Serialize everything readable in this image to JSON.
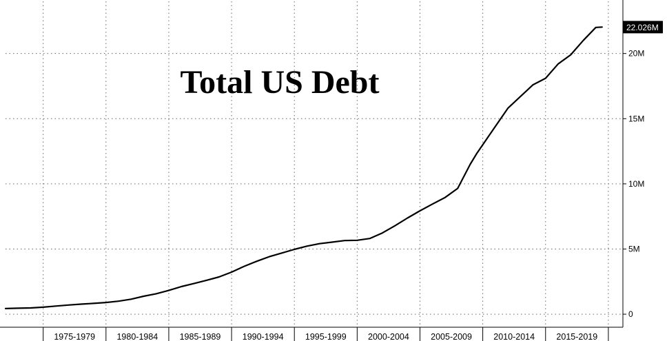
{
  "chart_data": {
    "type": "line",
    "title": "Total US Debt",
    "ylim": [
      -1000000,
      24000000
    ],
    "y_ticks": [
      {
        "value": 0,
        "label": "0"
      },
      {
        "value": 5000000,
        "label": "5M"
      },
      {
        "value": 10000000,
        "label": "10M"
      },
      {
        "value": 15000000,
        "label": "15M"
      },
      {
        "value": 20000000,
        "label": "20M"
      }
    ],
    "x_range": [
      1972.0,
      2020.5
    ],
    "x_groups": [
      {
        "label": "1975-1979",
        "start": 1975,
        "end": 1980
      },
      {
        "label": "1980-1984",
        "start": 1980,
        "end": 1985
      },
      {
        "label": "1985-1989",
        "start": 1985,
        "end": 1990
      },
      {
        "label": "1990-1994",
        "start": 1990,
        "end": 1995
      },
      {
        "label": "1995-1999",
        "start": 1995,
        "end": 2000
      },
      {
        "label": "2000-2004",
        "start": 2000,
        "end": 2005
      },
      {
        "label": "2005-2009",
        "start": 2005,
        "end": 2010
      },
      {
        "label": "2010-2014",
        "start": 2010,
        "end": 2015
      },
      {
        "label": "2015-2019",
        "start": 2015,
        "end": 2020
      }
    ],
    "last_value_label": "22.026M",
    "grid": true,
    "series": [
      {
        "line_color": "#000000",
        "points": [
          [
            1972.0,
            430000
          ],
          [
            1973.0,
            460000
          ],
          [
            1974.0,
            480000
          ],
          [
            1975.0,
            540000
          ],
          [
            1976.0,
            620000
          ],
          [
            1977.0,
            700000
          ],
          [
            1978.0,
            770000
          ],
          [
            1979.0,
            830000
          ],
          [
            1980.0,
            900000
          ],
          [
            1981.0,
            1000000
          ],
          [
            1982.0,
            1150000
          ],
          [
            1983.0,
            1380000
          ],
          [
            1984.0,
            1570000
          ],
          [
            1985.0,
            1820000
          ],
          [
            1986.0,
            2120000
          ],
          [
            1987.0,
            2350000
          ],
          [
            1988.0,
            2600000
          ],
          [
            1989.0,
            2860000
          ],
          [
            1990.0,
            3230000
          ],
          [
            1991.0,
            3670000
          ],
          [
            1992.0,
            4060000
          ],
          [
            1993.0,
            4410000
          ],
          [
            1994.0,
            4690000
          ],
          [
            1995.0,
            4970000
          ],
          [
            1996.0,
            5220000
          ],
          [
            1997.0,
            5410000
          ],
          [
            1998.0,
            5530000
          ],
          [
            1999.0,
            5650000
          ],
          [
            2000.0,
            5670000
          ],
          [
            2001.0,
            5810000
          ],
          [
            2002.0,
            6230000
          ],
          [
            2003.0,
            6780000
          ],
          [
            2004.0,
            7380000
          ],
          [
            2005.0,
            7930000
          ],
          [
            2006.0,
            8450000
          ],
          [
            2007.0,
            8950000
          ],
          [
            2008.0,
            9650000
          ],
          [
            2009.0,
            11500000
          ],
          [
            2009.5,
            12300000
          ],
          [
            2010.0,
            13000000
          ],
          [
            2011.0,
            14400000
          ],
          [
            2012.0,
            15800000
          ],
          [
            2013.0,
            16700000
          ],
          [
            2014.0,
            17600000
          ],
          [
            2015.0,
            18100000
          ],
          [
            2016.0,
            19200000
          ],
          [
            2017.0,
            19900000
          ],
          [
            2018.0,
            21000000
          ],
          [
            2019.0,
            22000000
          ],
          [
            2019.5,
            22026000
          ]
        ]
      }
    ]
  }
}
